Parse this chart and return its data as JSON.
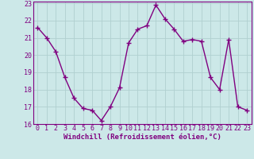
{
  "x": [
    0,
    1,
    2,
    3,
    4,
    5,
    6,
    7,
    8,
    9,
    10,
    11,
    12,
    13,
    14,
    15,
    16,
    17,
    18,
    19,
    20,
    21,
    22,
    23
  ],
  "y": [
    21.6,
    21.0,
    20.2,
    18.7,
    17.5,
    16.9,
    16.8,
    16.2,
    17.0,
    18.1,
    20.7,
    21.5,
    21.7,
    22.9,
    22.1,
    21.5,
    20.8,
    20.9,
    20.8,
    18.7,
    18.0,
    20.9,
    17.0,
    16.8
  ],
  "line_color": "#800080",
  "marker": "+",
  "marker_size": 4,
  "marker_edge_width": 1.0,
  "bg_color": "#cce8e8",
  "grid_color": "#b0d0d0",
  "xlabel": "Windchill (Refroidissement éolien,°C)",
  "xlabel_color": "#800080",
  "tick_color": "#800080",
  "spine_color": "#800080",
  "ylim": [
    16,
    23
  ],
  "xlim": [
    -0.5,
    23.5
  ],
  "yticks": [
    16,
    17,
    18,
    19,
    20,
    21,
    22,
    23
  ],
  "xticks": [
    0,
    1,
    2,
    3,
    4,
    5,
    6,
    7,
    8,
    9,
    10,
    11,
    12,
    13,
    14,
    15,
    16,
    17,
    18,
    19,
    20,
    21,
    22,
    23
  ],
  "xtick_labels": [
    "0",
    "1",
    "2",
    "3",
    "4",
    "5",
    "6",
    "7",
    "8",
    "9",
    "10",
    "11",
    "12",
    "13",
    "14",
    "15",
    "16",
    "17",
    "18",
    "19",
    "20",
    "21",
    "22",
    "23"
  ],
  "ytick_labels": [
    "16",
    "17",
    "18",
    "19",
    "20",
    "21",
    "22",
    "23"
  ],
  "line_width": 1.0,
  "xlabel_fontsize": 6.5,
  "tick_fontsize": 6.0
}
